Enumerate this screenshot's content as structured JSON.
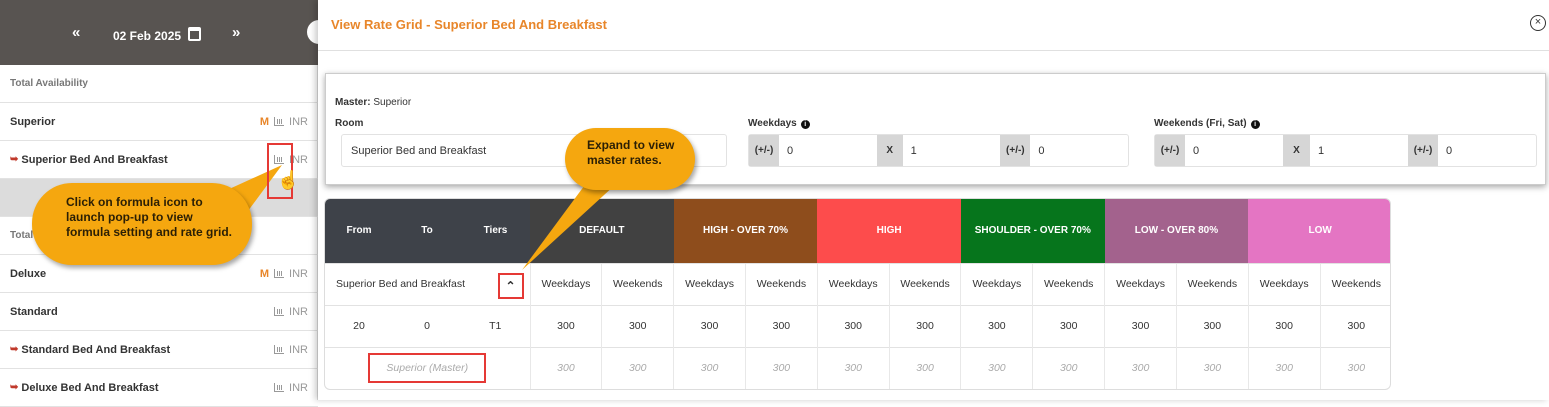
{
  "left": {
    "date": "02 Feb 2025",
    "prev": "«",
    "next": "»",
    "rows": [
      {
        "name": "Total Availability",
        "type": "section"
      },
      {
        "name": "Superior",
        "m": "M",
        "currency": "INR"
      },
      {
        "name": "Superior Bed And Breakfast",
        "currency": "INR",
        "child": true
      },
      {
        "name": "",
        "type": "band"
      },
      {
        "name": "Total",
        "type": "section"
      },
      {
        "name": "Deluxe",
        "m": "M",
        "currency": "INR"
      },
      {
        "name": "Standard",
        "currency": "INR"
      },
      {
        "name": "Standard Bed And Breakfast",
        "currency": "INR",
        "child": true
      },
      {
        "name": "Deluxe Bed And Breakfast",
        "currency": "INR",
        "child": true
      }
    ]
  },
  "callouts": {
    "formula": "Click on formula icon to launch pop-up to view formula setting and rate grid.",
    "expand": "Expand to view master rates."
  },
  "modal": {
    "title": "View Rate Grid - Superior Bed And Breakfast",
    "master_label": "Master:",
    "master_value": "Superior",
    "room_label": "Room",
    "room_value": "Superior Bed and Breakfast",
    "weekdays_label": "Weekdays",
    "weekends_label": "Weekends (Fri, Sat)",
    "addon": "(+/-)",
    "mult": "X",
    "weekdays": {
      "add1": "0",
      "mult": "1",
      "add2": "0"
    },
    "weekends": {
      "add1": "0",
      "mult": "1",
      "add2": "0"
    }
  },
  "grid": {
    "from": "From",
    "to": "To",
    "tiers": "Tiers",
    "seasons": [
      {
        "name": "DEFAULT",
        "color": "#414141"
      },
      {
        "name": "HIGH - OVER 70%",
        "color": "#8e4d1c"
      },
      {
        "name": "HIGH",
        "color": "#fd4c4c"
      },
      {
        "name": "SHOULDER - OVER 70%",
        "color": "#06751c"
      },
      {
        "name": "LOW - OVER 80%",
        "color": "#a3628d"
      },
      {
        "name": "LOW",
        "color": "#e475c3"
      }
    ],
    "room": "Superior Bed and Breakfast",
    "weekdays": "Weekdays",
    "weekends": "Weekends",
    "row": {
      "from": "20",
      "to": "0",
      "tier": "T1",
      "values": [
        "300",
        "300",
        "300",
        "300",
        "300",
        "300",
        "300",
        "300",
        "300",
        "300",
        "300",
        "300"
      ]
    },
    "master": {
      "label": "Superior (Master)",
      "values": [
        "300",
        "300",
        "300",
        "300",
        "300",
        "300",
        "300",
        "300",
        "300",
        "300",
        "300",
        "300"
      ]
    }
  }
}
